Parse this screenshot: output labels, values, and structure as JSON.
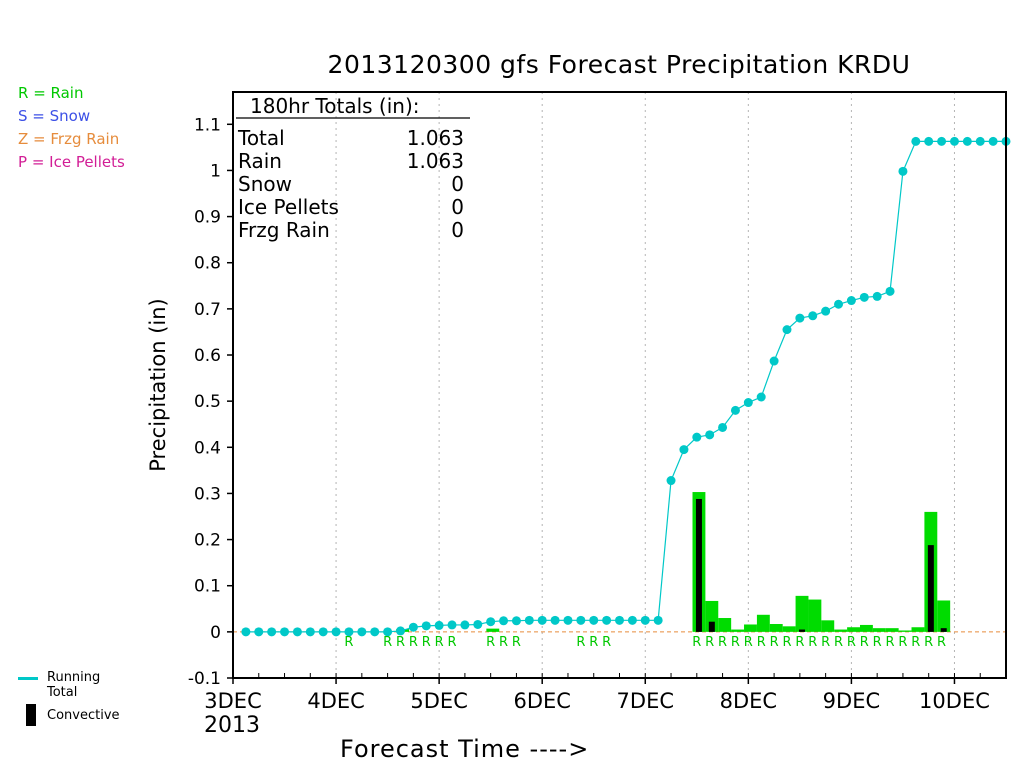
{
  "legend": {
    "ptype": [
      {
        "text": "R = Rain",
        "color": "#00c800"
      },
      {
        "text": "S = Snow",
        "color": "#3c50e6"
      },
      {
        "text": "Z = Frzg Rain",
        "color": "#e68c3c"
      },
      {
        "text": "P = Ice Pellets",
        "color": "#d21e96"
      }
    ],
    "running_total": "Running Total",
    "convective": "Convective"
  },
  "totals_box": {
    "header": "180hr Totals (in):",
    "rows": [
      {
        "label": "Total",
        "value": "1.063"
      },
      {
        "label": "Rain",
        "value": "1.063"
      },
      {
        "label": "Snow",
        "value": "0"
      },
      {
        "label": "Ice Pellets",
        "value": "0"
      },
      {
        "label": "Frzg Rain",
        "value": "0"
      }
    ]
  },
  "chart_data": {
    "type": "bar",
    "title": "2013120300 gfs Forecast Precipitation KRDU",
    "xlabel": "Forecast Time ---->",
    "ylabel": "Precipitation (in)",
    "year_label": "2013",
    "x_unit": "forecast hours (6h steps)",
    "xlim": [
      0,
      180
    ],
    "ylim": [
      -0.1,
      1.17
    ],
    "yticks": [
      -0.1,
      0,
      0.1,
      0.2,
      0.3,
      0.4,
      0.5,
      0.6,
      0.7,
      0.8,
      0.9,
      1,
      1.1
    ],
    "ytick_labels": [
      "-0.1",
      "0",
      "0.1",
      "0.2",
      "0.3",
      "0.4",
      "0.5",
      "0.6",
      "0.7",
      "0.8",
      "0.9",
      "1",
      "1.1"
    ],
    "day_ticks": [
      {
        "label": "3DEC",
        "hour": 0
      },
      {
        "label": "4DEC",
        "hour": 24
      },
      {
        "label": "5DEC",
        "hour": 48
      },
      {
        "label": "6DEC",
        "hour": 72
      },
      {
        "label": "7DEC",
        "hour": 96
      },
      {
        "label": "8DEC",
        "hour": 120
      },
      {
        "label": "9DEC",
        "hour": 144
      },
      {
        "label": "10DEC",
        "hour": 168
      }
    ],
    "grid": "vertical dotted at each day",
    "colors": {
      "rain": "#00dc00",
      "convective": "#000000",
      "running_total": "#00c8c8",
      "ptype_text": "#00c800"
    },
    "series": [
      {
        "name": "Running Total",
        "type": "line",
        "hours": [
          3,
          6,
          9,
          12,
          15,
          18,
          21,
          24,
          27,
          30,
          33,
          36,
          39,
          42,
          45,
          48,
          51,
          54,
          57,
          60,
          63,
          66,
          69,
          72,
          75,
          78,
          81,
          84,
          87,
          90,
          93,
          96,
          99,
          102,
          105,
          108,
          111,
          114,
          117,
          120,
          123,
          126,
          129,
          132,
          135,
          138,
          141,
          144,
          147,
          150,
          153,
          156,
          159,
          162,
          165,
          168,
          171,
          174,
          177,
          180
        ],
        "values": [
          0,
          0,
          0,
          0,
          0,
          0,
          0,
          0,
          0,
          0,
          0,
          0,
          0.002,
          0.01,
          0.013,
          0.014,
          0.015,
          0.015,
          0.016,
          0.022,
          0.024,
          0.024,
          0.025,
          0.025,
          0.025,
          0.025,
          0.025,
          0.025,
          0.025,
          0.025,
          0.025,
          0.025,
          0.025,
          0.328,
          0.395,
          0.422,
          0.427,
          0.443,
          0.48,
          0.497,
          0.509,
          0.587,
          0.655,
          0.68,
          0.685,
          0.695,
          0.71,
          0.718,
          0.725,
          0.727,
          0.738,
          0.998,
          1.063,
          1.063,
          1.063,
          1.063,
          1.063,
          1.063,
          1.063,
          1.063
        ]
      },
      {
        "name": "Rain",
        "type": "bar",
        "period_end_hours": [
          108,
          114,
          120,
          126,
          132,
          138,
          144,
          150,
          156,
          162,
          168
        ],
        "bins": [
          {
            "start": 107,
            "end": 110,
            "value": 0.303
          },
          {
            "start": 110,
            "end": 113,
            "value": 0.067
          },
          {
            "start": 113,
            "end": 116,
            "value": 0.03
          },
          {
            "start": 116,
            "end": 119,
            "value": 0.005
          },
          {
            "start": 119,
            "end": 122,
            "value": 0.016
          },
          {
            "start": 122,
            "end": 125,
            "value": 0.037
          },
          {
            "start": 125,
            "end": 128,
            "value": 0.017
          },
          {
            "start": 128,
            "end": 131,
            "value": 0.012
          },
          {
            "start": 131,
            "end": 134,
            "value": 0.078
          },
          {
            "start": 134,
            "end": 137,
            "value": 0.07
          },
          {
            "start": 137,
            "end": 140,
            "value": 0.025
          },
          {
            "start": 140,
            "end": 143,
            "value": 0.005
          },
          {
            "start": 143,
            "end": 146,
            "value": 0.01
          },
          {
            "start": 146,
            "end": 149,
            "value": 0.015
          },
          {
            "start": 149,
            "end": 152,
            "value": 0.008
          },
          {
            "start": 152,
            "end": 155,
            "value": 0.008
          },
          {
            "start": 155,
            "end": 158,
            "value": 0.003
          },
          {
            "start": 158,
            "end": 161,
            "value": 0.01
          },
          {
            "start": 161,
            "end": 164,
            "value": 0.26
          },
          {
            "start": 164,
            "end": 167,
            "value": 0.068
          },
          {
            "start": 59,
            "end": 62,
            "value": 0.007
          },
          {
            "start": 38,
            "end": 41,
            "value": 0.006
          }
        ]
      },
      {
        "name": "Convective",
        "type": "bar",
        "bins": [
          {
            "hour": 108.5,
            "value": 0.288
          },
          {
            "hour": 111.5,
            "value": 0.022
          },
          {
            "hour": 132.5,
            "value": 0.005
          },
          {
            "hour": 162.5,
            "value": 0.188
          },
          {
            "hour": 165.5,
            "value": 0.008
          }
        ]
      }
    ],
    "ptype_markers": {
      "label": "R",
      "hours": [
        27,
        36,
        39,
        42,
        45,
        48,
        51,
        60,
        63,
        66,
        81,
        84,
        87,
        108,
        111,
        114,
        117,
        120,
        123,
        126,
        129,
        132,
        135,
        138,
        141,
        144,
        147,
        150,
        153,
        156,
        159,
        162,
        165
      ]
    }
  }
}
